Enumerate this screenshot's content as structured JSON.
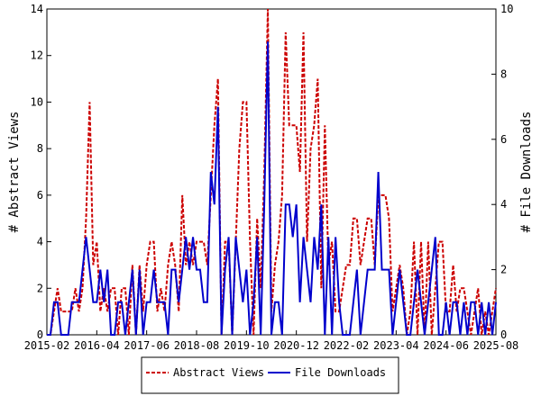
{
  "chart_data": {
    "type": "line",
    "y_label": "# Abstract Views",
    "y2_label": "# File Downloads",
    "x": [
      "2015-02",
      "2015-03",
      "2015-04",
      "2015-05",
      "2015-06",
      "2015-07",
      "2015-08",
      "2015-09",
      "2015-10",
      "2015-11",
      "2015-12",
      "2016-01",
      "2016-02",
      "2016-03",
      "2016-04",
      "2016-05",
      "2016-06",
      "2016-07",
      "2016-08",
      "2016-09",
      "2016-10",
      "2016-11",
      "2016-12",
      "2017-01",
      "2017-02",
      "2017-03",
      "2017-04",
      "2017-05",
      "2017-06",
      "2017-07",
      "2017-08",
      "2017-09",
      "2017-10",
      "2017-11",
      "2017-12",
      "2018-01",
      "2018-02",
      "2018-03",
      "2018-04",
      "2018-05",
      "2018-06",
      "2018-07",
      "2018-08",
      "2018-09",
      "2018-10",
      "2018-11",
      "2018-12",
      "2019-01",
      "2019-02",
      "2019-03",
      "2019-04",
      "2019-05",
      "2019-06",
      "2019-07",
      "2019-08",
      "2019-09",
      "2019-10",
      "2019-11",
      "2019-12",
      "2020-01",
      "2020-02",
      "2020-03",
      "2020-04",
      "2020-05",
      "2020-06",
      "2020-07",
      "2020-08",
      "2020-09",
      "2020-10",
      "2020-11",
      "2020-12",
      "2021-01",
      "2021-02",
      "2021-03",
      "2021-04",
      "2021-05",
      "2021-06",
      "2021-07",
      "2021-08",
      "2021-09",
      "2021-10",
      "2021-11",
      "2021-12",
      "2022-01",
      "2022-02",
      "2022-03",
      "2022-04",
      "2022-05",
      "2022-06",
      "2022-07",
      "2022-08",
      "2022-09",
      "2022-10",
      "2022-11",
      "2022-12",
      "2023-01",
      "2023-02",
      "2023-03",
      "2023-04",
      "2023-05",
      "2023-06",
      "2023-07",
      "2023-08",
      "2023-09",
      "2023-10",
      "2023-11",
      "2023-12",
      "2024-01",
      "2024-02",
      "2024-03",
      "2024-04",
      "2024-05",
      "2024-06",
      "2024-07",
      "2024-08",
      "2024-09",
      "2024-10",
      "2024-11",
      "2024-12",
      "2025-01",
      "2025-02",
      "2025-03",
      "2025-04",
      "2025-05",
      "2025-06",
      "2025-07",
      "2025-08"
    ],
    "xticks": [
      "2015-02",
      "2016-04",
      "2017-06",
      "2018-08",
      "2019-10",
      "2020-12",
      "2022-02",
      "2023-04",
      "2024-06",
      "2025-08"
    ],
    "ylim": [
      0,
      14
    ],
    "yticks": [
      0,
      2,
      4,
      6,
      8,
      10,
      12,
      14
    ],
    "y2lim": [
      0,
      10
    ],
    "y2ticks": [
      0,
      2,
      4,
      6,
      8,
      10
    ],
    "series": [
      {
        "name": "Abstract Views",
        "color": "#cc0000",
        "dash": true,
        "values": [
          0,
          0,
          1,
          2,
          1,
          1,
          1,
          1,
          2,
          1,
          2,
          5,
          10,
          3,
          4,
          1,
          2,
          1,
          2,
          2,
          0,
          2,
          2,
          0,
          3,
          0,
          3,
          1,
          3,
          4,
          4,
          1,
          2,
          1,
          3,
          4,
          3,
          1,
          6,
          3,
          4,
          3,
          4,
          4,
          4,
          3,
          6,
          9,
          11,
          0,
          4,
          4,
          0,
          4,
          8,
          10,
          10,
          4,
          0,
          5,
          2,
          7,
          14,
          1,
          3,
          4,
          6,
          13,
          9,
          9,
          9,
          7,
          13,
          4,
          8,
          9,
          11,
          2,
          9,
          3,
          4,
          1,
          1,
          2,
          3,
          3,
          5,
          5,
          3,
          4,
          5,
          5,
          3,
          6,
          6,
          6,
          5,
          1,
          2,
          3,
          2,
          0,
          1,
          4,
          0,
          4,
          0,
          4,
          0,
          2,
          4,
          4,
          1,
          1,
          3,
          1,
          2,
          2,
          1,
          0,
          1,
          2,
          0,
          1,
          0,
          1,
          2
        ]
      },
      {
        "name": "File Downloads",
        "color": "#0000cc",
        "axis": "y2",
        "values": [
          0,
          0,
          1,
          1,
          0,
          0,
          0,
          1,
          1,
          1,
          2,
          3,
          2,
          1,
          1,
          2,
          1,
          2,
          0,
          0,
          1,
          1,
          0,
          1,
          2,
          0,
          2,
          0,
          1,
          1,
          2,
          1,
          1,
          1,
          0,
          2,
          2,
          1,
          2,
          3,
          2,
          3,
          2,
          2,
          1,
          1,
          5,
          4,
          7,
          0,
          2,
          3,
          0,
          3,
          2,
          1,
          2,
          0,
          1,
          3,
          0,
          4,
          9,
          0,
          1,
          1,
          0,
          4,
          4,
          3,
          4,
          1,
          3,
          2,
          1,
          3,
          2,
          4,
          0,
          3,
          0,
          3,
          1,
          0,
          0,
          0,
          1,
          2,
          0,
          1,
          2,
          2,
          2,
          5,
          2,
          2,
          2,
          0,
          1,
          2,
          1,
          0,
          0,
          1,
          2,
          1,
          0,
          1,
          2,
          3,
          0,
          0,
          1,
          0,
          1,
          1,
          0,
          1,
          0,
          1,
          1,
          0,
          1,
          0,
          1,
          0,
          1
        ]
      }
    ]
  }
}
